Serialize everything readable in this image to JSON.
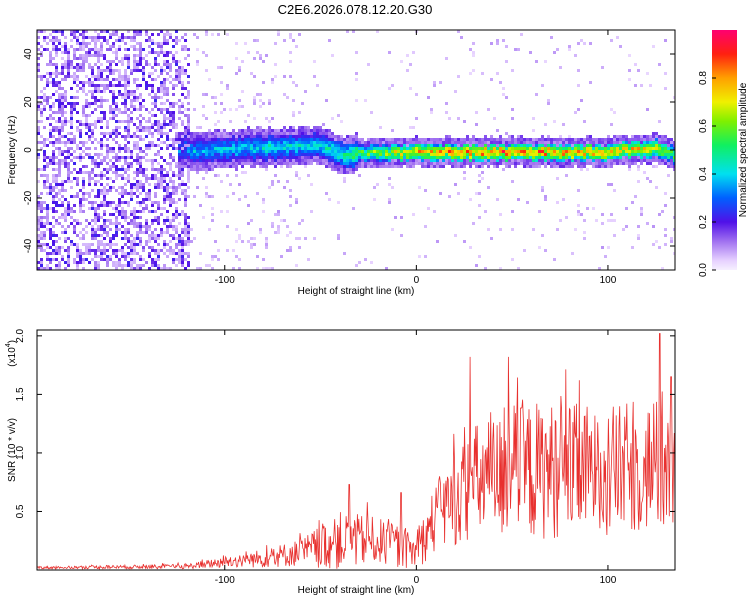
{
  "title": "C2E6.2026.078.12.20.G30",
  "chart_data": [
    {
      "type": "heatmap",
      "xlabel": "Height of straight line (km)",
      "ylabel": "Frequency (Hz)",
      "xlim": [
        -198,
        135
      ],
      "ylim": [
        -50,
        50
      ],
      "xticks": [
        -100,
        0,
        100
      ],
      "yticks": [
        -40,
        -20,
        0,
        20,
        40
      ],
      "colorbar": {
        "label": "Normalized spectral amplitude",
        "range": [
          0,
          1
        ],
        "ticks": [
          0.0,
          0.2,
          0.4,
          0.6,
          0.8
        ]
      },
      "ridge": {
        "description_points": [
          {
            "x": -115,
            "f": 0,
            "amp": 0.4
          },
          {
            "x": -80,
            "f": 1,
            "amp": 0.45
          },
          {
            "x": -50,
            "f": 2,
            "amp": 0.45
          },
          {
            "x": -40,
            "f": -2,
            "amp": 0.5
          },
          {
            "x": 0,
            "f": -1,
            "amp": 0.85
          },
          {
            "x": 50,
            "f": -1,
            "amp": 0.9
          },
          {
            "x": 100,
            "f": -1,
            "amp": 0.85
          },
          {
            "x": 125,
            "f": 1,
            "amp": 0.8
          },
          {
            "x": 135,
            "f": -2,
            "amp": 0.6
          }
        ]
      }
    },
    {
      "type": "line",
      "xlabel": "Height of straight line (km)",
      "ylabel": "SNR (10 * v/v)",
      "y_multiplier_label": "(x10",
      "y_multiplier_exp": "4",
      "y_multiplier_close": ")",
      "xlim": [
        -198,
        135
      ],
      "ylim": [
        0,
        2.05
      ],
      "xticks": [
        -100,
        0,
        100
      ],
      "yticks": [
        0.5,
        1.0,
        1.5,
        2.0
      ],
      "ytick_labels": [
        "0.5",
        "1.0",
        "1.5",
        "2.0"
      ],
      "color": "#e8302e",
      "envelope": [
        {
          "x": -198,
          "mean": 0.02,
          "amp": 0.01
        },
        {
          "x": -120,
          "mean": 0.03,
          "amp": 0.02
        },
        {
          "x": -100,
          "mean": 0.07,
          "amp": 0.05
        },
        {
          "x": -80,
          "mean": 0.1,
          "amp": 0.08
        },
        {
          "x": -60,
          "mean": 0.15,
          "amp": 0.12
        },
        {
          "x": -40,
          "mean": 0.25,
          "amp": 0.25
        },
        {
          "x": -20,
          "mean": 0.25,
          "amp": 0.2
        },
        {
          "x": 0,
          "mean": 0.15,
          "amp": 0.15
        },
        {
          "x": 10,
          "mean": 0.45,
          "amp": 0.3
        },
        {
          "x": 30,
          "mean": 0.75,
          "amp": 0.5
        },
        {
          "x": 60,
          "mean": 0.85,
          "amp": 0.6
        },
        {
          "x": 100,
          "mean": 0.85,
          "amp": 0.55
        },
        {
          "x": 135,
          "mean": 0.9,
          "amp": 0.6
        }
      ],
      "peaks": [
        {
          "x": 28,
          "y": 1.82
        },
        {
          "x": 48,
          "y": 1.82
        },
        {
          "x": 85,
          "y": 1.62
        },
        {
          "x": 127,
          "y": 2.02
        },
        {
          "x": 133,
          "y": 1.65
        },
        {
          "x": -35,
          "y": 0.73
        },
        {
          "x": -8,
          "y": 0.66
        }
      ]
    }
  ]
}
